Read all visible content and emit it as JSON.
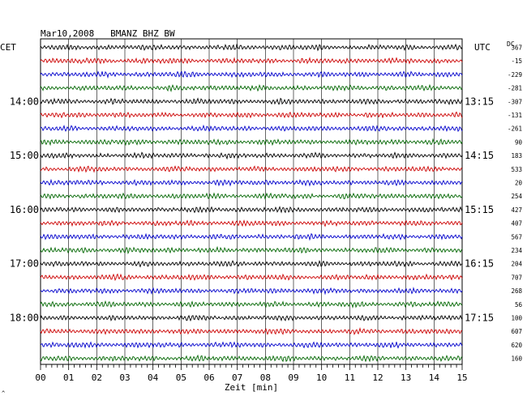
{
  "chart_data": {
    "type": "line",
    "title": "Mar10,2008   BMANZ BHZ BW",
    "xlabel": "Zeit [min]",
    "left_axis_label": "CET",
    "right_axis_label": "UTC",
    "offset_label": "DC",
    "xlim": [
      0,
      15
    ],
    "x_ticks": [
      "00",
      "01",
      "02",
      "03",
      "04",
      "05",
      "06",
      "07",
      "08",
      "09",
      "10",
      "11",
      "12",
      "13",
      "14",
      "15"
    ],
    "grid": true,
    "trace_colors": [
      "#000000",
      "#cc0000",
      "#0000cc",
      "#006600"
    ],
    "trace_count": 24,
    "trace_minutes": 15,
    "cet_labels": [
      "14:00",
      "15:00",
      "16:00",
      "17:00",
      "18:00"
    ],
    "utc_labels": [
      "13:15",
      "14:15",
      "15:15",
      "16:15",
      "17:15"
    ],
    "dc_offsets": [
      "367",
      "-15",
      "-229",
      "-281",
      "-307",
      "-131",
      "-261",
      "90",
      "183",
      "533",
      "20",
      "254",
      "427",
      "407",
      "567",
      "234",
      "204",
      "707",
      "268",
      "56",
      "100",
      "607",
      "620",
      "160"
    ],
    "footer_mark": "^"
  }
}
